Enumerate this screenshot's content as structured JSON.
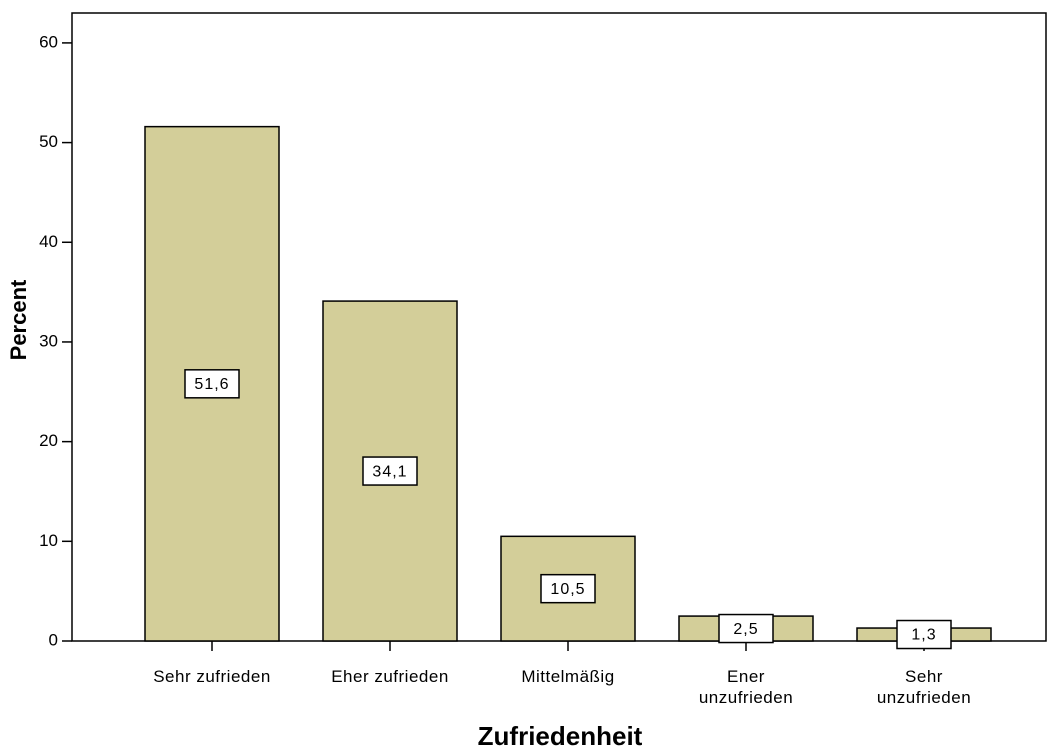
{
  "chart_data": {
    "type": "bar",
    "x_label": "Zufriedenheit",
    "y_label": "Percent",
    "categories": [
      "Sehr zufrieden",
      "Eher zufrieden",
      "Mittelmäßig",
      "Ener\nunzufrieden",
      "Sehr\nunzufrieden"
    ],
    "values": [
      51.6,
      34.1,
      10.5,
      2.5,
      1.3
    ],
    "value_labels": [
      "51,6",
      "34,1",
      "10,5",
      "2,5",
      "1,3"
    ],
    "color": "#d3ce99",
    "ylim": [
      0,
      63
    ],
    "yticks": [
      0,
      10,
      20,
      30,
      40,
      50,
      60
    ]
  }
}
